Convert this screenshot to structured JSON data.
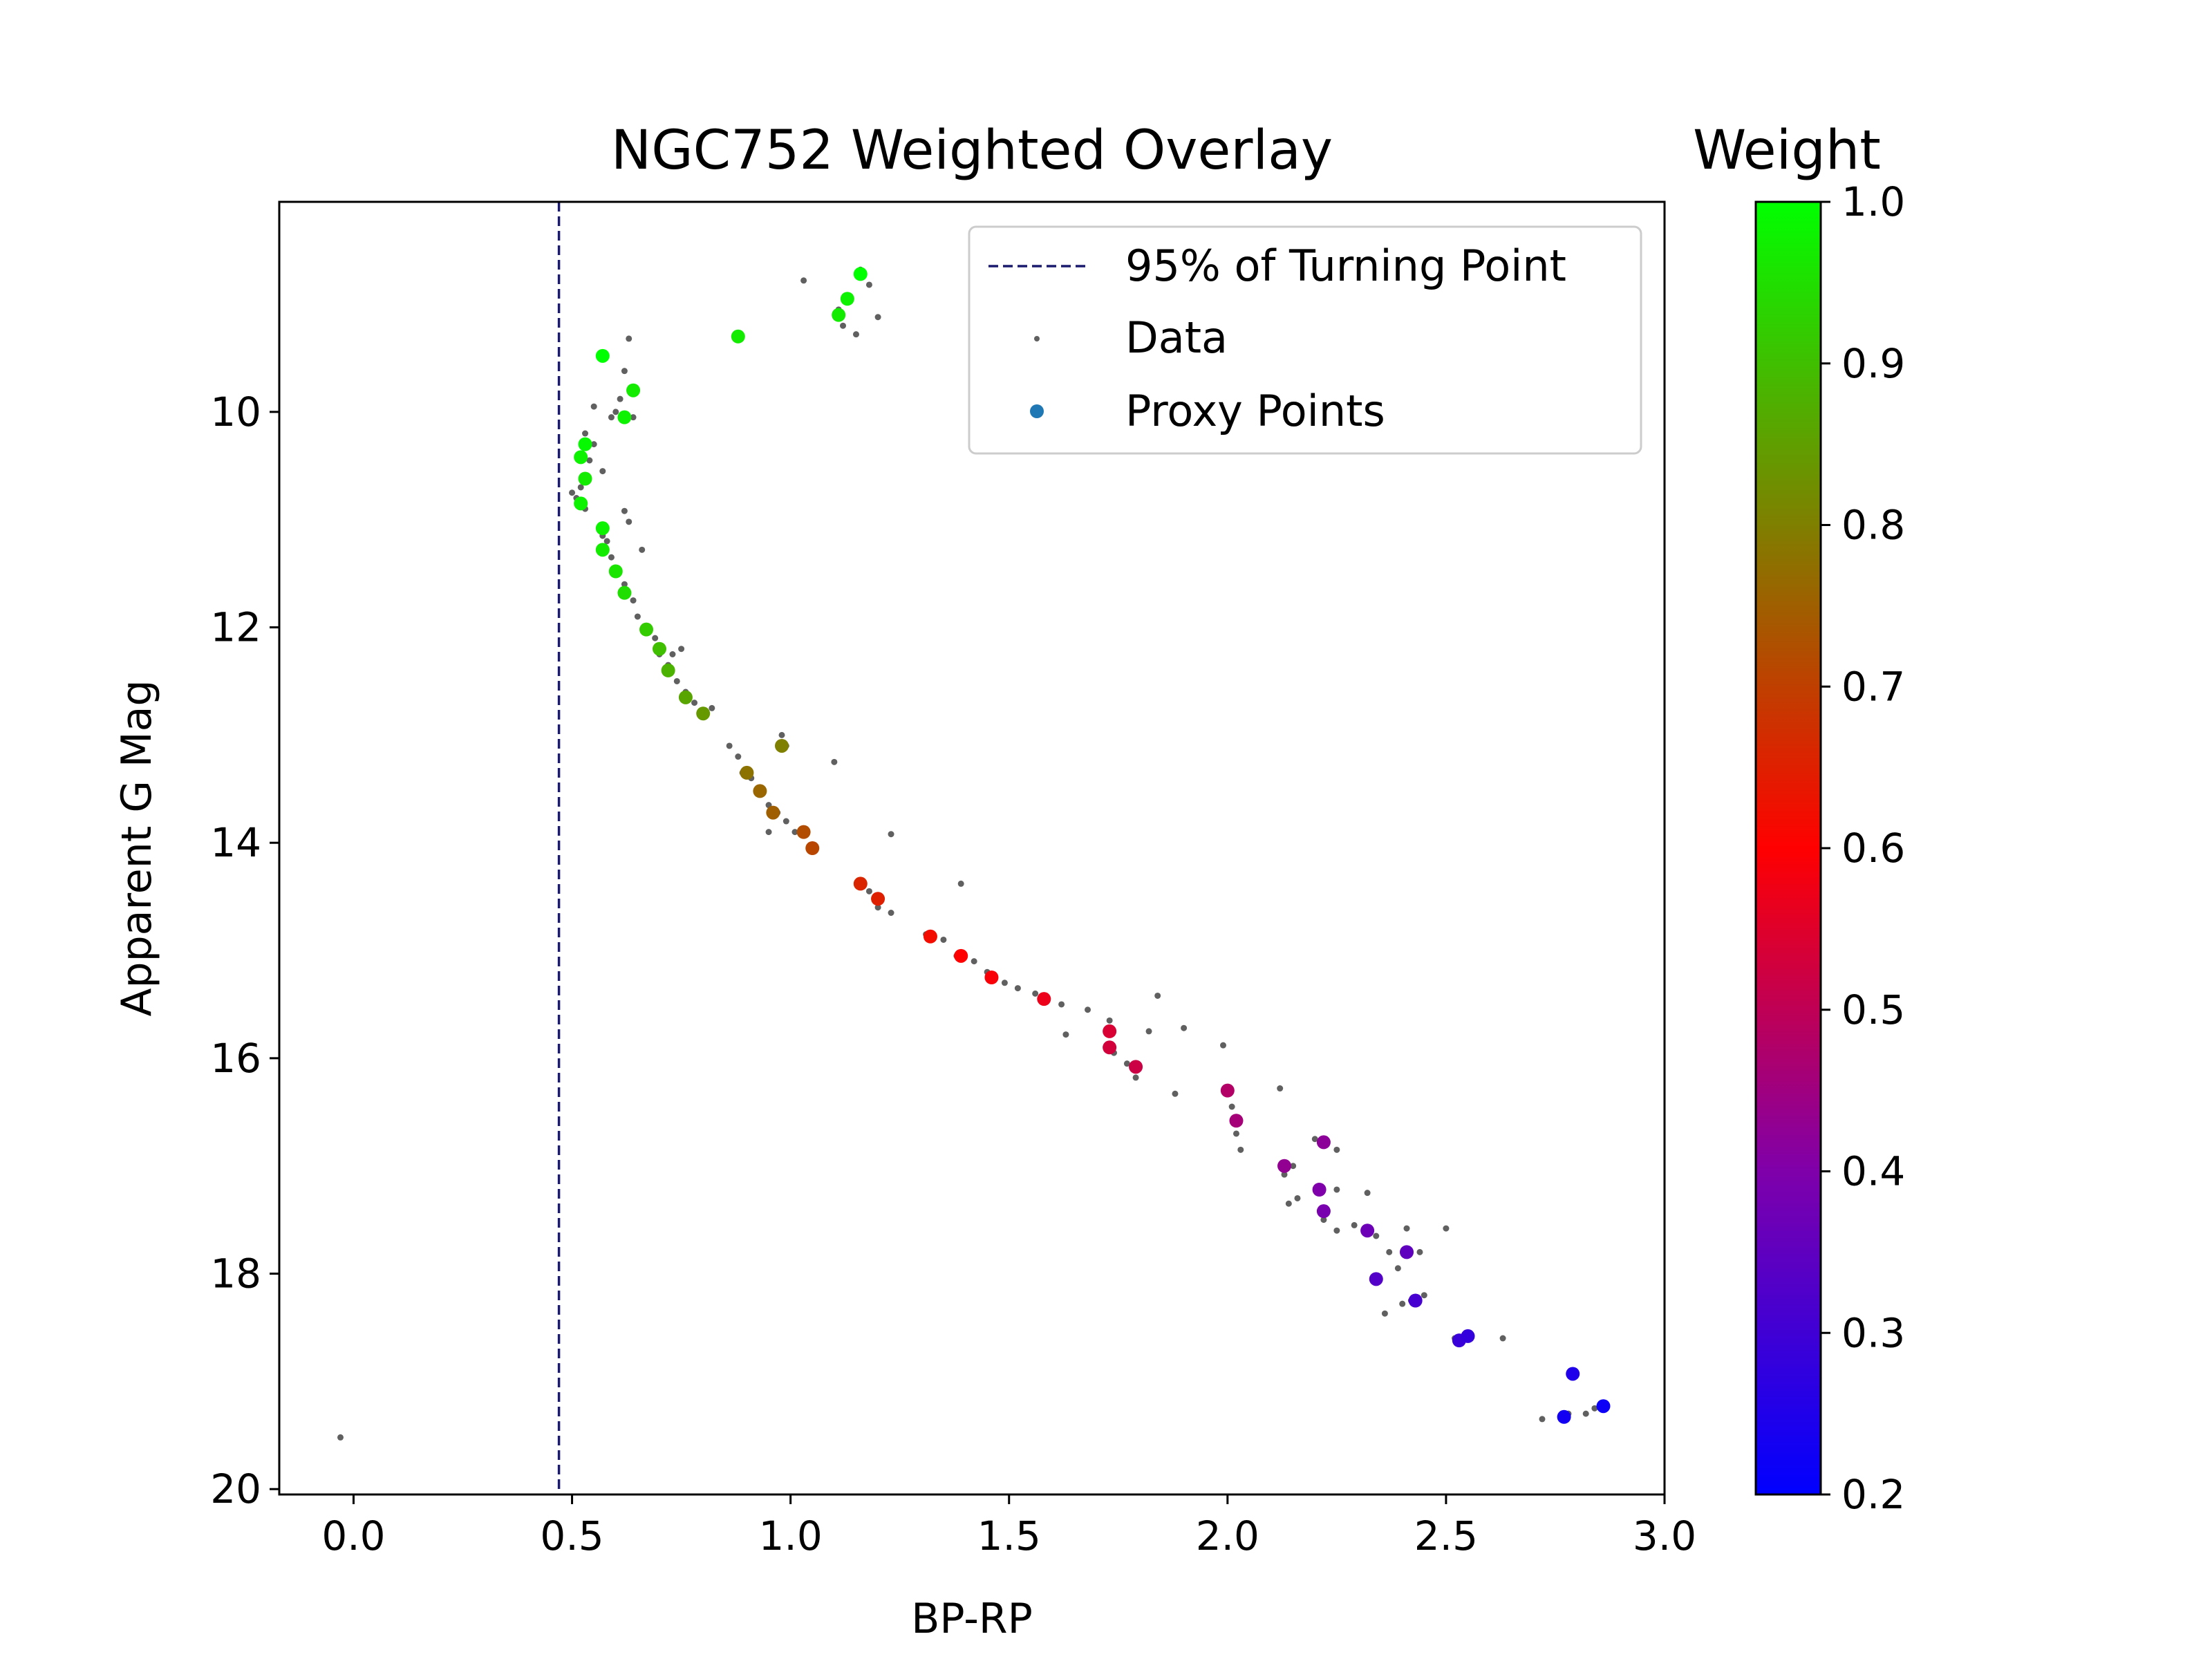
{
  "chart_data": {
    "type": "scatter",
    "title": "NGC752 Weighted Overlay",
    "xlabel": "BP-RP",
    "ylabel": "Apparent G Mag",
    "xlim": [
      -0.17,
      3.0
    ],
    "ylim": [
      20.05,
      8.05
    ],
    "y_inverted": true,
    "x_ticks": [
      "0.0",
      "0.5",
      "1.0",
      "1.5",
      "2.0",
      "2.5",
      "3.0"
    ],
    "y_ticks": [
      "10",
      "12",
      "14",
      "16",
      "18",
      "20"
    ],
    "grid": false,
    "legend_position": "top-right",
    "legend": {
      "turning_line_label": "95% of Turning Point",
      "data_label": "Data",
      "proxy_label": "Proxy Points"
    },
    "turning_point_line": {
      "x": 0.47,
      "color": "#1a1a6e"
    },
    "colorbar": {
      "title": "Weight",
      "range": [
        0.2,
        1.0
      ],
      "ticks": [
        "0.2",
        "0.3",
        "0.4",
        "0.5",
        "0.6",
        "0.7",
        "0.8",
        "0.9",
        "1.0"
      ],
      "stops": [
        {
          "v": 0.2,
          "color": "#0000ff"
        },
        {
          "v": 0.4,
          "color": "#7f00aa"
        },
        {
          "v": 0.6,
          "color": "#ff0000"
        },
        {
          "v": 0.8,
          "color": "#7f7f00"
        },
        {
          "v": 1.0,
          "color": "#00ff00"
        }
      ]
    },
    "data_color": "#606060",
    "series": [
      {
        "name": "Data",
        "points": [
          [
            1.03,
            8.78
          ],
          [
            1.16,
            8.68
          ],
          [
            1.18,
            8.82
          ],
          [
            1.11,
            9.05
          ],
          [
            1.2,
            9.12
          ],
          [
            1.12,
            9.2
          ],
          [
            1.15,
            9.28
          ],
          [
            0.63,
            9.32
          ],
          [
            0.57,
            9.5
          ],
          [
            0.62,
            9.62
          ],
          [
            0.55,
            9.95
          ],
          [
            0.59,
            10.05
          ],
          [
            0.61,
            9.88
          ],
          [
            0.64,
            10.05
          ],
          [
            0.6,
            10.0
          ],
          [
            0.53,
            10.2
          ],
          [
            0.55,
            10.3
          ],
          [
            0.54,
            10.45
          ],
          [
            0.57,
            10.55
          ],
          [
            0.52,
            10.7
          ],
          [
            0.51,
            10.8
          ],
          [
            0.5,
            10.75
          ],
          [
            0.53,
            10.9
          ],
          [
            0.62,
            10.92
          ],
          [
            0.63,
            11.02
          ],
          [
            0.57,
            11.15
          ],
          [
            0.58,
            11.2
          ],
          [
            0.66,
            11.28
          ],
          [
            0.59,
            11.35
          ],
          [
            0.6,
            11.45
          ],
          [
            0.62,
            11.6
          ],
          [
            0.64,
            11.75
          ],
          [
            0.65,
            11.9
          ],
          [
            0.67,
            12.05
          ],
          [
            0.69,
            12.1
          ],
          [
            0.7,
            12.25
          ],
          [
            0.73,
            12.25
          ],
          [
            0.75,
            12.2
          ],
          [
            0.72,
            12.35
          ],
          [
            0.74,
            12.5
          ],
          [
            0.76,
            12.6
          ],
          [
            0.78,
            12.7
          ],
          [
            0.8,
            12.8
          ],
          [
            0.82,
            12.75
          ],
          [
            0.86,
            13.1
          ],
          [
            0.88,
            13.2
          ],
          [
            0.98,
            13.0
          ],
          [
            0.99,
            13.1
          ],
          [
            1.1,
            13.25
          ],
          [
            0.89,
            13.35
          ],
          [
            0.91,
            13.4
          ],
          [
            0.93,
            13.55
          ],
          [
            0.95,
            13.65
          ],
          [
            0.97,
            13.72
          ],
          [
            0.99,
            13.8
          ],
          [
            0.95,
            13.9
          ],
          [
            1.01,
            13.9
          ],
          [
            1.05,
            14.05
          ],
          [
            1.23,
            13.92
          ],
          [
            1.18,
            14.45
          ],
          [
            1.2,
            14.6
          ],
          [
            1.23,
            14.65
          ],
          [
            1.39,
            14.38
          ],
          [
            1.31,
            14.85
          ],
          [
            1.35,
            14.9
          ],
          [
            1.38,
            15.05
          ],
          [
            1.42,
            15.1
          ],
          [
            1.45,
            15.2
          ],
          [
            1.49,
            15.3
          ],
          [
            1.52,
            15.35
          ],
          [
            1.56,
            15.4
          ],
          [
            1.62,
            15.5
          ],
          [
            1.68,
            15.55
          ],
          [
            1.73,
            15.65
          ],
          [
            1.82,
            15.75
          ],
          [
            1.84,
            15.42
          ],
          [
            1.9,
            15.72
          ],
          [
            1.63,
            15.78
          ],
          [
            1.74,
            15.95
          ],
          [
            1.77,
            16.05
          ],
          [
            1.79,
            16.18
          ],
          [
            1.88,
            16.33
          ],
          [
            1.99,
            15.88
          ],
          [
            2.01,
            16.45
          ],
          [
            2.02,
            16.7
          ],
          [
            2.03,
            16.85
          ],
          [
            2.12,
            16.28
          ],
          [
            2.15,
            17.0
          ],
          [
            2.13,
            17.08
          ],
          [
            2.2,
            16.75
          ],
          [
            2.25,
            16.85
          ],
          [
            2.25,
            17.22
          ],
          [
            2.16,
            17.3
          ],
          [
            2.14,
            17.35
          ],
          [
            2.22,
            17.5
          ],
          [
            2.29,
            17.55
          ],
          [
            2.25,
            17.6
          ],
          [
            2.32,
            17.25
          ],
          [
            2.34,
            17.65
          ],
          [
            2.37,
            17.8
          ],
          [
            2.39,
            17.95
          ],
          [
            2.41,
            17.58
          ],
          [
            2.44,
            17.8
          ],
          [
            2.5,
            17.58
          ],
          [
            2.36,
            18.37
          ],
          [
            2.4,
            18.28
          ],
          [
            2.42,
            18.25
          ],
          [
            2.45,
            18.2
          ],
          [
            2.52,
            18.6
          ],
          [
            2.63,
            18.6
          ],
          [
            2.72,
            19.35
          ],
          [
            2.78,
            19.3
          ],
          [
            2.82,
            19.3
          ],
          [
            2.84,
            19.25
          ],
          [
            -0.03,
            19.52
          ]
        ]
      },
      {
        "name": "Proxy Points",
        "points": [
          [
            1.16,
            8.72,
            1.0
          ],
          [
            1.13,
            8.95,
            0.98
          ],
          [
            1.11,
            9.1,
            0.97
          ],
          [
            0.88,
            9.3,
            0.97
          ],
          [
            0.57,
            9.48,
            1.0
          ],
          [
            0.64,
            9.8,
            0.97
          ],
          [
            0.62,
            10.05,
            0.98
          ],
          [
            0.53,
            10.3,
            0.99
          ],
          [
            0.52,
            10.42,
            0.98
          ],
          [
            0.53,
            10.62,
            0.97
          ],
          [
            0.52,
            10.85,
            0.98
          ],
          [
            0.57,
            11.08,
            0.98
          ],
          [
            0.57,
            11.28,
            0.97
          ],
          [
            0.6,
            11.48,
            0.96
          ],
          [
            0.62,
            11.68,
            0.95
          ],
          [
            0.67,
            12.02,
            0.92
          ],
          [
            0.7,
            12.2,
            0.9
          ],
          [
            0.72,
            12.4,
            0.88
          ],
          [
            0.76,
            12.65,
            0.86
          ],
          [
            0.8,
            12.8,
            0.84
          ],
          [
            0.98,
            13.1,
            0.8
          ],
          [
            0.9,
            13.35,
            0.78
          ],
          [
            0.93,
            13.52,
            0.76
          ],
          [
            0.96,
            13.72,
            0.75
          ],
          [
            1.03,
            13.9,
            0.72
          ],
          [
            1.05,
            14.05,
            0.71
          ],
          [
            1.16,
            14.38,
            0.66
          ],
          [
            1.2,
            14.52,
            0.65
          ],
          [
            1.32,
            14.87,
            0.62
          ],
          [
            1.39,
            15.05,
            0.6
          ],
          [
            1.46,
            15.25,
            0.59
          ],
          [
            1.58,
            15.45,
            0.57
          ],
          [
            1.73,
            15.75,
            0.54
          ],
          [
            1.73,
            15.9,
            0.53
          ],
          [
            1.79,
            16.08,
            0.52
          ],
          [
            2.0,
            16.3,
            0.48
          ],
          [
            2.02,
            16.58,
            0.46
          ],
          [
            2.13,
            17.0,
            0.43
          ],
          [
            2.22,
            16.78,
            0.42
          ],
          [
            2.21,
            17.22,
            0.4
          ],
          [
            2.22,
            17.42,
            0.39
          ],
          [
            2.32,
            17.6,
            0.37
          ],
          [
            2.41,
            17.8,
            0.35
          ],
          [
            2.34,
            18.05,
            0.33
          ],
          [
            2.43,
            18.25,
            0.31
          ],
          [
            2.53,
            18.62,
            0.29
          ],
          [
            2.55,
            18.58,
            0.28
          ],
          [
            2.79,
            18.93,
            0.25
          ],
          [
            2.77,
            19.33,
            0.23
          ],
          [
            2.86,
            19.23,
            0.22
          ]
        ]
      }
    ]
  }
}
